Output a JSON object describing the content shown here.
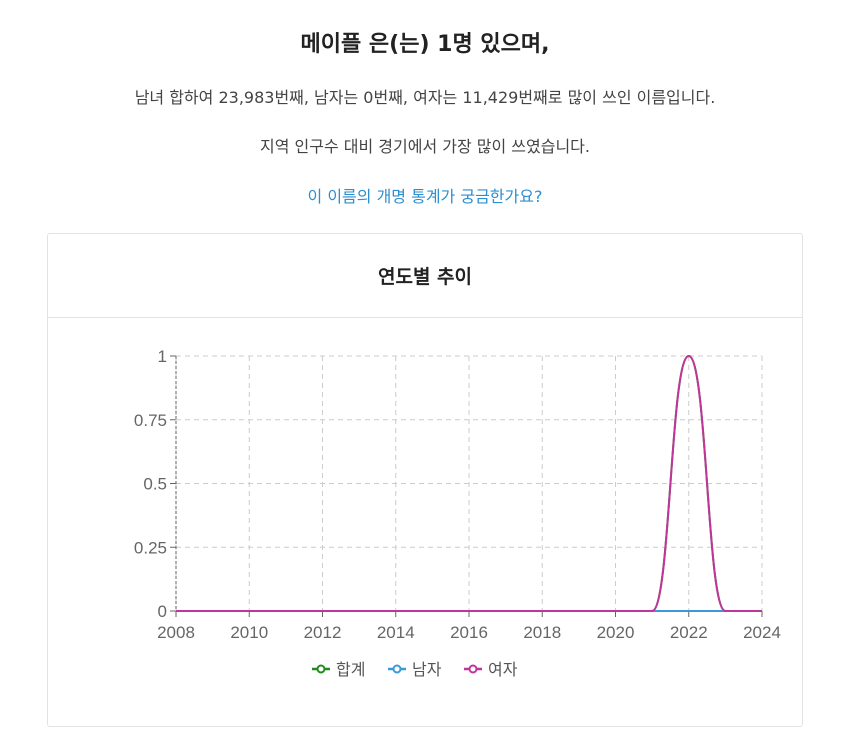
{
  "summary": {
    "headline": "메이플 은(는) 1명 있으며,",
    "rank_line": "남녀 합하여 23,983번째, 남자는 0번째, 여자는 11,429번째로 많이 쓰인 이름입니다.",
    "region_line": "지역 인구수 대비 경기에서 가장 많이 쓰였습니다.",
    "rename_link": "이 이름의 개명 통계가 궁금한가요?"
  },
  "card": {
    "title": "연도별 추이"
  },
  "colors": {
    "total": "#1e8c1e",
    "male": "#3a9ad9",
    "female": "#c0359a",
    "link": "#2b8fd0",
    "grid": "#cccccc",
    "axis": "#666666"
  },
  "chart_data": {
    "type": "line",
    "title": "연도별 추이",
    "xlabel": "",
    "ylabel": "",
    "x": [
      2008,
      2009,
      2010,
      2011,
      2012,
      2013,
      2014,
      2015,
      2016,
      2017,
      2018,
      2019,
      2020,
      2021,
      2022,
      2023,
      2024
    ],
    "x_ticks": [
      "2008",
      "2010",
      "2012",
      "2014",
      "2016",
      "2018",
      "2020",
      "2022",
      "2024"
    ],
    "y_ticks": [
      "0",
      "0.25",
      "0.5",
      "0.75",
      "1"
    ],
    "xlim": [
      2008,
      2024
    ],
    "ylim": [
      0,
      1
    ],
    "grid": true,
    "legend_position": "bottom",
    "series": [
      {
        "name": "합계",
        "color": "#1e8c1e",
        "values": [
          0,
          0,
          0,
          0,
          0,
          0,
          0,
          0,
          0,
          0,
          0,
          0,
          0,
          0,
          1,
          0,
          0
        ]
      },
      {
        "name": "남자",
        "color": "#3a9ad9",
        "values": [
          0,
          0,
          0,
          0,
          0,
          0,
          0,
          0,
          0,
          0,
          0,
          0,
          0,
          0,
          0,
          0,
          0
        ]
      },
      {
        "name": "여자",
        "color": "#c0359a",
        "values": [
          0,
          0,
          0,
          0,
          0,
          0,
          0,
          0,
          0,
          0,
          0,
          0,
          0,
          0,
          1,
          0,
          0
        ]
      }
    ]
  }
}
